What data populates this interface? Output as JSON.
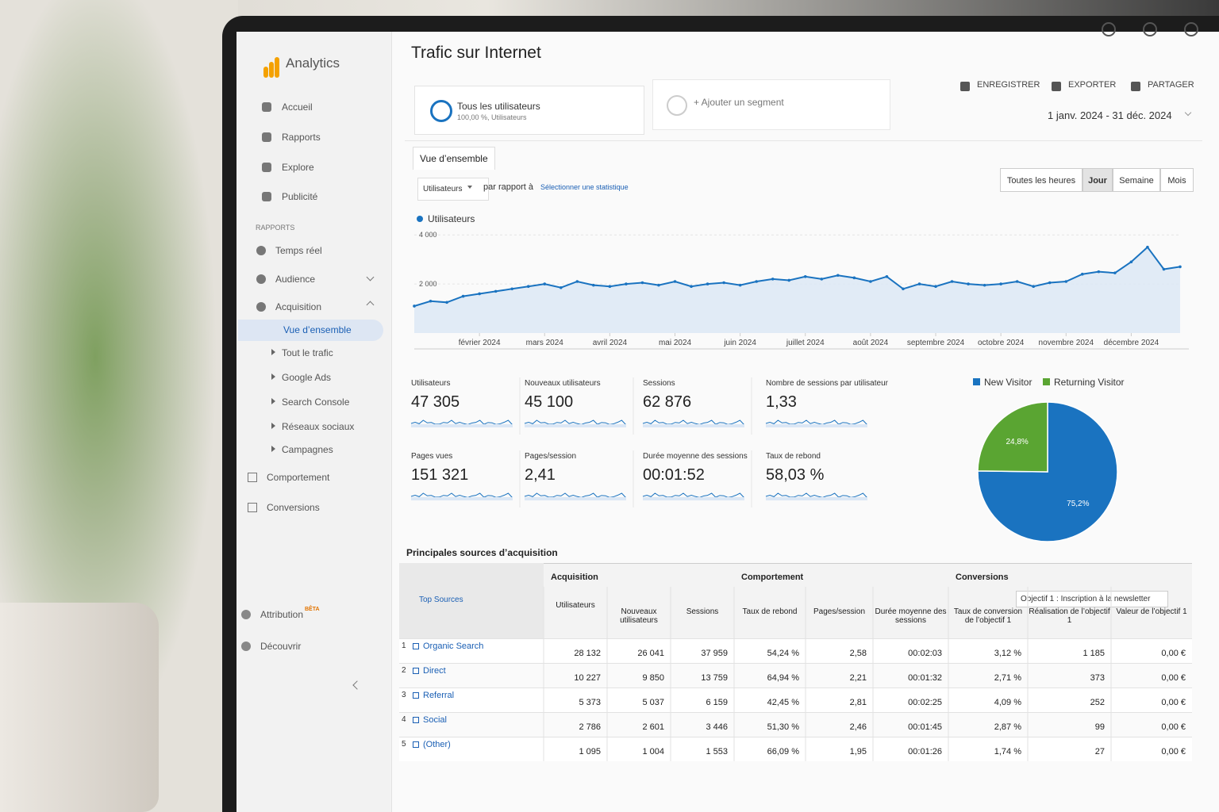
{
  "app": {
    "name": "Analytics"
  },
  "sidebar": {
    "items": [
      "Accueil",
      "Rapports",
      "Explore",
      "Publicité"
    ],
    "section": "RAPPORTS",
    "reports": [
      "Temps réel",
      "Audience",
      "Acquisition"
    ],
    "active": "Vue d’ensemble",
    "sub": [
      "Tout le trafic",
      "Google Ads",
      "Search Console",
      "Réseaux sociaux",
      "Campagnes"
    ],
    "more": [
      "Comportement",
      "Conversions"
    ],
    "bottom": [
      {
        "label": "Attribution",
        "badge": "BÊTA"
      },
      {
        "label": "Découvrir"
      }
    ]
  },
  "header": {
    "title": "Trafic sur Internet",
    "segment": {
      "name": "Tous les utilisateurs",
      "detail": "100,00 %, Utilisateurs"
    },
    "add_segment": "+ Ajouter un segment",
    "actions": [
      "ENREGISTRER",
      "EXPORTER",
      "PARTAGER"
    ],
    "date_range": "1 janv. 2024 - 31 déc. 2024"
  },
  "tab": "Vue d’ensemble",
  "controls": {
    "metric": "Utilisateurs",
    "compare": "par rapport à",
    "select": "Sélectionner une statistique",
    "periods": [
      "Toutes les heures",
      "Jour",
      "Semaine",
      "Mois"
    ],
    "active": 1
  },
  "chart_data": [
    {
      "type": "line",
      "series": [
        {
          "name": "Utilisateurs",
          "color": "#1a73c0",
          "values": [
            1100,
            1300,
            1250,
            1500,
            1600,
            1700,
            1800,
            1900,
            2000,
            1850,
            2100,
            1950,
            1900,
            2000,
            2050,
            1950,
            2100,
            1900,
            2000,
            2050,
            1950,
            2100,
            2200,
            2150,
            2300,
            2200,
            2350,
            2250,
            2100,
            2300,
            1800,
            2000,
            1900,
            2100,
            2000,
            1950,
            2000,
            2100,
            1900,
            2050,
            2100,
            2400,
            2500,
            2450,
            2900,
            3500,
            2600,
            2700
          ]
        }
      ],
      "ylim": [
        0,
        4200
      ],
      "yticks": [
        {
          "value": 2000,
          "label": "2 000"
        },
        {
          "value": 4000,
          "label": "4 000"
        }
      ],
      "xticks": [
        {
          "value": 4,
          "label": "février 2024"
        },
        {
          "value": 8,
          "label": "mars 2024"
        },
        {
          "value": 12,
          "label": "avril 2024"
        },
        {
          "value": 16,
          "label": "mai 2024"
        },
        {
          "value": 20,
          "label": "juin 2024"
        },
        {
          "value": 24,
          "label": "juillet 2024"
        },
        {
          "value": 28,
          "label": "août 2024"
        },
        {
          "value": 32,
          "label": "septembre 2024"
        },
        {
          "value": 36,
          "label": "octobre 2024"
        },
        {
          "value": 40,
          "label": "novembre 2024"
        },
        {
          "value": 44,
          "label": "décembre 2024"
        }
      ],
      "grid": true
    },
    {
      "type": "pie",
      "categories": [
        "New Visitor",
        "Returning Visitor"
      ],
      "values": [
        75.2,
        24.8
      ],
      "value_labels": [
        "75,2%",
        "24,8%"
      ],
      "colors": [
        "#1a73c0",
        "#5aa532"
      ]
    }
  ],
  "metrics": [
    {
      "label": "Utilisateurs",
      "value": "47 305"
    },
    {
      "label": "Nouveaux utilisateurs",
      "value": "45 100"
    },
    {
      "label": "Sessions",
      "value": "62 876"
    },
    {
      "label": "Nombre de sessions par utilisateur",
      "value": "1,33"
    },
    {
      "label": "Pages vues",
      "value": "151 321"
    },
    {
      "label": "Pages/session",
      "value": "2,41"
    },
    {
      "label": "Durée moyenne des sessions",
      "value": "00:01:52"
    },
    {
      "label": "Taux de rebond",
      "value": "58,03 %"
    }
  ],
  "table": {
    "title": "Principales sources d’acquisition",
    "dimension": "Top Sources",
    "groups": [
      "Acquisition",
      "Comportement",
      "Conversions"
    ],
    "goal_select": "Objectif 1 : Inscription à la newsletter",
    "columns": [
      "Utilisateurs",
      "Nouveaux utilisateurs",
      "Sessions",
      "Taux de rebond",
      "Pages/session",
      "Durée moyenne des sessions",
      "Taux de conversion de l’objectif 1",
      "Réalisation de l’objectif 1",
      "Valeur de l’objectif 1"
    ],
    "rows": [
      [
        "1",
        "Organic Search",
        "28 132",
        "26 041",
        "37 959",
        "54,24 %",
        "2,58",
        "00:02:03",
        "3,12 %",
        "1 185",
        "0,00 €"
      ],
      [
        "2",
        "Direct",
        "10 227",
        "9 850",
        "13 759",
        "64,94 %",
        "2,21",
        "00:01:32",
        "2,71 %",
        "373",
        "0,00 €"
      ],
      [
        "3",
        "Referral",
        "5 373",
        "5 037",
        "6 159",
        "42,45 %",
        "2,81",
        "00:02:25",
        "4,09 %",
        "252",
        "0,00 €"
      ],
      [
        "4",
        "Social",
        "2 786",
        "2 601",
        "3 446",
        "51,30 %",
        "2,46",
        "00:01:45",
        "2,87 %",
        "99",
        "0,00 €"
      ],
      [
        "5",
        "(Other)",
        "1 095",
        "1 004",
        "1 553",
        "66,09 %",
        "1,95",
        "00:01:26",
        "1,74 %",
        "27",
        "0,00 €"
      ]
    ]
  }
}
